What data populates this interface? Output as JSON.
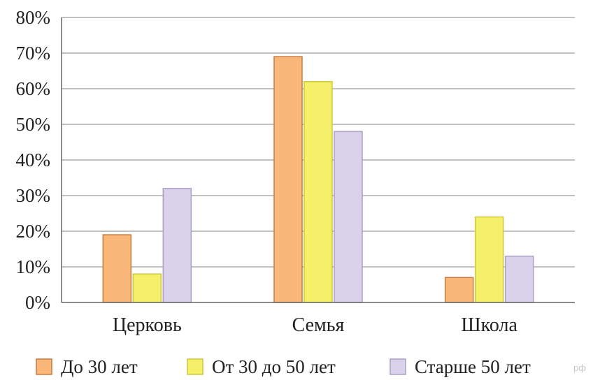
{
  "chart_data": {
    "type": "bar",
    "categories": [
      "Церковь",
      "Семья",
      "Школа"
    ],
    "series": [
      {
        "name": "До 30 лет",
        "values": [
          19,
          69,
          7
        ],
        "color": "#f9b77a",
        "stroke": "#c97a3c"
      },
      {
        "name": "От 30 до 50 лет",
        "values": [
          8,
          62,
          24
        ],
        "color": "#f5f06a",
        "stroke": "#cfc93a"
      },
      {
        "name": "Старше 50 лет",
        "values": [
          32,
          48,
          13
        ],
        "color": "#d9d2ea",
        "stroke": "#aaa0c8"
      }
    ],
    "y_ticks": [
      "0%",
      "10%",
      "20%",
      "30%",
      "40%",
      "50%",
      "60%",
      "70%",
      "80%"
    ],
    "ylim": [
      0,
      80
    ],
    "grid": true,
    "legend_position": "bottom",
    "title": "",
    "xlabel": "",
    "ylabel": ""
  },
  "watermark": "рф"
}
